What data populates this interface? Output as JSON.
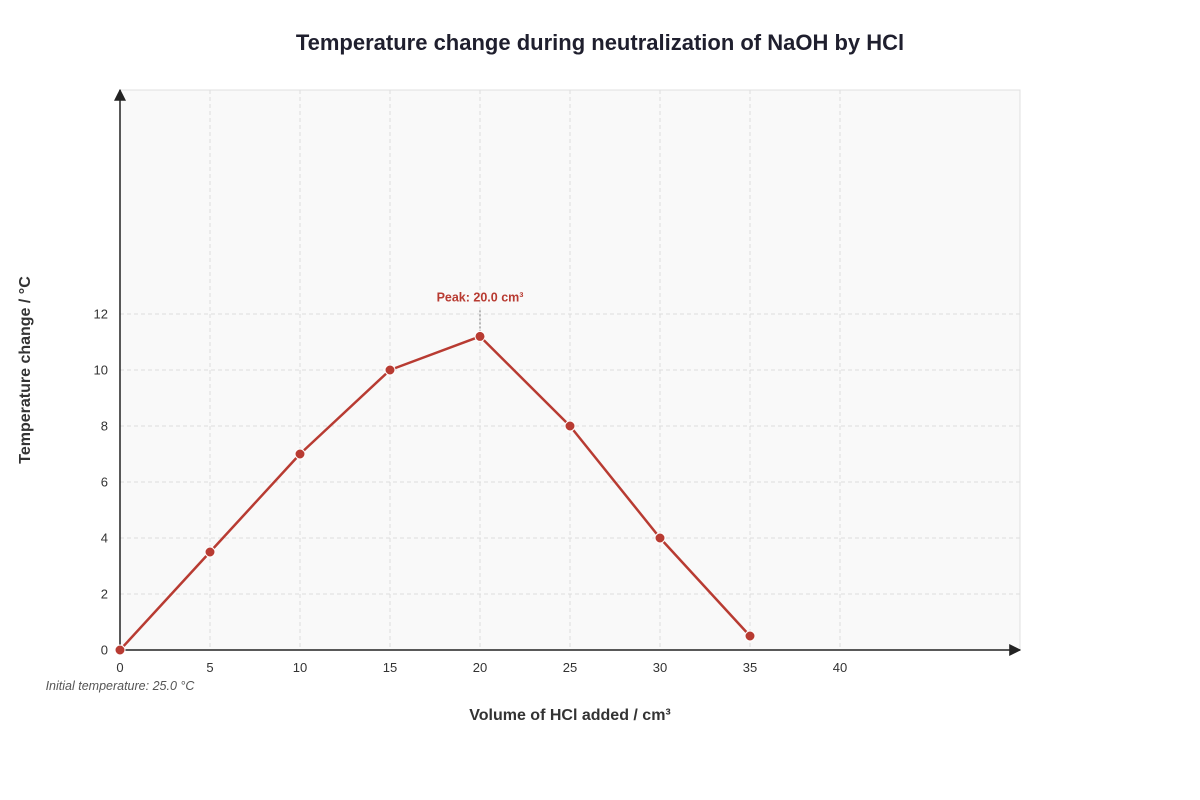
{
  "colors": {
    "series": "#b83b32",
    "grid": "#dddddd",
    "plot_background": "#f9f9f9",
    "axis": "#222222"
  },
  "chart_data": {
    "type": "line",
    "title": "Temperature change during neutralization of NaOH by HCl",
    "xlabel": "Volume of HCl added / cm³",
    "ylabel": "Temperature change / °C",
    "xlim": [
      0,
      50
    ],
    "ylim": [
      0,
      20
    ],
    "x_ticks": [
      0,
      5,
      10,
      15,
      20,
      25,
      30,
      35,
      40
    ],
    "y_ticks": [
      0,
      2,
      4,
      6,
      8,
      10,
      12
    ],
    "grid": true,
    "series": [
      {
        "x": [
          0,
          5,
          10,
          15,
          20,
          25,
          30,
          35
        ],
        "values": [
          0,
          3.5,
          7,
          10,
          11.2,
          8,
          4,
          0.5
        ]
      }
    ],
    "annotations": {
      "peak": {
        "x": 20,
        "y": 11.2,
        "label": "Peak: 20.0 cm³"
      },
      "note": "Initial temperature: 25.0 °C"
    }
  }
}
